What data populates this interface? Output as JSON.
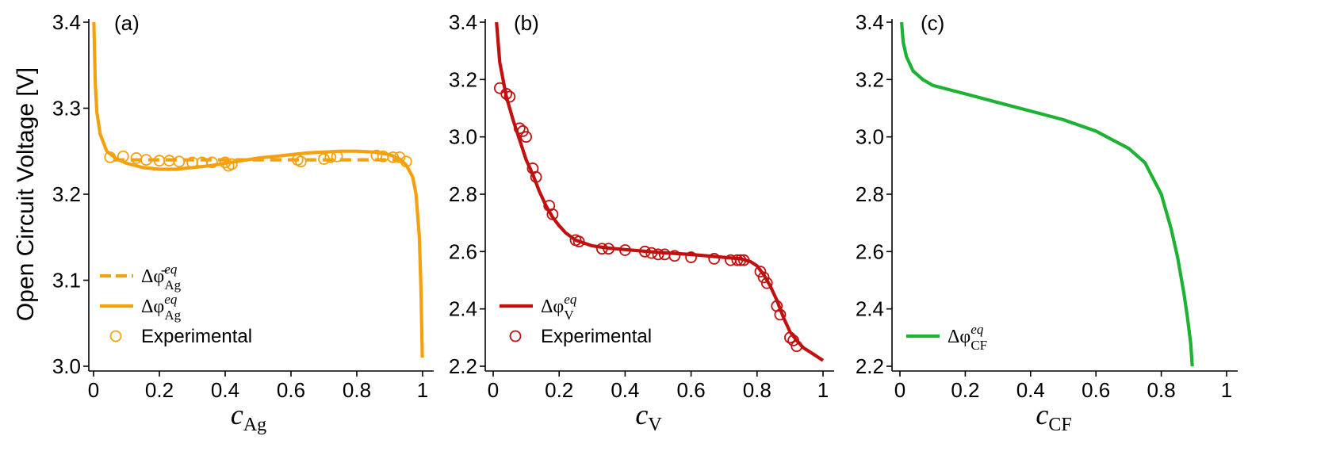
{
  "figure": {
    "ylabel": "Open Circuit Voltage [V]"
  },
  "chart_data": [
    {
      "type": "line",
      "panel_label": "(a)",
      "xlabel": {
        "var": "c",
        "sub": "Ag"
      },
      "xlim": [
        0,
        1
      ],
      "ylim": [
        3.0,
        3.4
      ],
      "x_ticks": [
        0,
        0.2,
        0.4,
        0.6,
        0.8,
        1
      ],
      "x_tick_labels": [
        "0",
        "0.2",
        "0.4",
        "0.6",
        "0.8",
        "1"
      ],
      "y_ticks": [
        3.0,
        3.1,
        3.2,
        3.3,
        3.4
      ],
      "y_tick_labels": [
        "3.0",
        "3.1",
        "3.2",
        "3.3",
        "3.4"
      ],
      "color": "#F5A10E",
      "series": [
        {
          "name": "Δφ̄ eq Ag",
          "legend_main": "Δφ̄",
          "legend_sup": "eq",
          "legend_sub": "Ag",
          "style": "dashed",
          "x": [
            0.06,
            0.1,
            0.2,
            0.3,
            0.4,
            0.5,
            0.6,
            0.7,
            0.8,
            0.9,
            0.94
          ],
          "y": [
            3.24,
            3.24,
            3.24,
            3.24,
            3.24,
            3.24,
            3.24,
            3.24,
            3.24,
            3.24,
            3.24
          ]
        },
        {
          "name": "Δφ eq Ag",
          "legend_main": "Δφ",
          "legend_sup": "eq",
          "legend_sub": "Ag",
          "style": "solid",
          "x": [
            0.001,
            0.005,
            0.01,
            0.02,
            0.04,
            0.07,
            0.1,
            0.15,
            0.2,
            0.25,
            0.3,
            0.35,
            0.4,
            0.45,
            0.5,
            0.55,
            0.6,
            0.65,
            0.7,
            0.75,
            0.8,
            0.85,
            0.9,
            0.93,
            0.95,
            0.97,
            0.98,
            0.99,
            0.995,
            0.999
          ],
          "y": [
            3.4,
            3.33,
            3.295,
            3.27,
            3.25,
            3.241,
            3.236,
            3.231,
            3.229,
            3.229,
            3.231,
            3.233,
            3.236,
            3.239,
            3.242,
            3.244,
            3.246,
            3.248,
            3.249,
            3.25,
            3.25,
            3.249,
            3.246,
            3.241,
            3.234,
            3.22,
            3.2,
            3.15,
            3.09,
            3.01
          ]
        },
        {
          "name": "Experimental",
          "legend_main": "Experimental",
          "style": "markers",
          "x": [
            0.05,
            0.09,
            0.13,
            0.16,
            0.2,
            0.23,
            0.26,
            0.3,
            0.33,
            0.36,
            0.4,
            0.41,
            0.42,
            0.62,
            0.63,
            0.7,
            0.72,
            0.74,
            0.86,
            0.88,
            0.91,
            0.93,
            0.95
          ],
          "y": [
            3.243,
            3.244,
            3.242,
            3.24,
            3.239,
            3.239,
            3.238,
            3.237,
            3.237,
            3.237,
            3.237,
            3.233,
            3.235,
            3.24,
            3.238,
            3.241,
            3.243,
            3.244,
            3.245,
            3.244,
            3.243,
            3.243,
            3.238
          ]
        }
      ],
      "legend_position": "lower-left"
    },
    {
      "type": "line",
      "panel_label": "(b)",
      "xlabel": {
        "var": "c",
        "sub": "V"
      },
      "xlim": [
        0,
        1
      ],
      "ylim": [
        2.2,
        3.4
      ],
      "x_ticks": [
        0,
        0.2,
        0.4,
        0.6,
        0.8,
        1
      ],
      "x_tick_labels": [
        "0",
        "0.2",
        "0.4",
        "0.6",
        "0.8",
        "1"
      ],
      "y_ticks": [
        2.2,
        2.4,
        2.6,
        2.8,
        3.0,
        3.2,
        3.4
      ],
      "y_tick_labels": [
        "2.2",
        "2.4",
        "2.6",
        "2.8",
        "3.0",
        "3.2",
        "3.4"
      ],
      "color": "#C0100F",
      "series": [
        {
          "name": "Δφ eq V",
          "legend_main": "Δφ",
          "legend_sup": "eq",
          "legend_sub": "V",
          "style": "solid",
          "x": [
            0.01,
            0.02,
            0.04,
            0.06,
            0.08,
            0.1,
            0.12,
            0.14,
            0.16,
            0.18,
            0.2,
            0.22,
            0.25,
            0.3,
            0.35,
            0.4,
            0.5,
            0.6,
            0.7,
            0.75,
            0.78,
            0.8,
            0.82,
            0.84,
            0.86,
            0.88,
            0.9,
            0.92,
            0.94,
            0.96,
            0.98,
            1.0
          ],
          "y": [
            3.4,
            3.26,
            3.14,
            3.06,
            2.99,
            2.92,
            2.87,
            2.81,
            2.76,
            2.72,
            2.69,
            2.665,
            2.64,
            2.62,
            2.612,
            2.607,
            2.597,
            2.59,
            2.58,
            2.575,
            2.565,
            2.55,
            2.52,
            2.48,
            2.43,
            2.37,
            2.32,
            2.29,
            2.265,
            2.25,
            2.235,
            2.22
          ]
        },
        {
          "name": "Experimental",
          "legend_main": "Experimental",
          "style": "markers",
          "x": [
            0.02,
            0.04,
            0.05,
            0.08,
            0.09,
            0.1,
            0.12,
            0.13,
            0.17,
            0.18,
            0.25,
            0.26,
            0.33,
            0.35,
            0.4,
            0.46,
            0.48,
            0.5,
            0.52,
            0.55,
            0.6,
            0.67,
            0.72,
            0.74,
            0.75,
            0.76,
            0.81,
            0.82,
            0.83,
            0.86,
            0.87,
            0.9,
            0.91,
            0.92
          ],
          "y": [
            3.17,
            3.15,
            3.14,
            3.03,
            3.02,
            3.0,
            2.89,
            2.86,
            2.76,
            2.73,
            2.64,
            2.635,
            2.61,
            2.61,
            2.605,
            2.6,
            2.595,
            2.59,
            2.59,
            2.585,
            2.58,
            2.575,
            2.57,
            2.57,
            2.57,
            2.57,
            2.53,
            2.51,
            2.49,
            2.41,
            2.38,
            2.3,
            2.29,
            2.27
          ]
        }
      ],
      "legend_position": "lower-left"
    },
    {
      "type": "line",
      "panel_label": "(c)",
      "xlabel": {
        "var": "c",
        "sub": "CF"
      },
      "xlim": [
        0,
        1
      ],
      "ylim": [
        2.2,
        3.4
      ],
      "x_ticks": [
        0,
        0.2,
        0.4,
        0.6,
        0.8,
        1
      ],
      "x_tick_labels": [
        "0",
        "0.2",
        "0.4",
        "0.6",
        "0.8",
        "1"
      ],
      "y_ticks": [
        2.2,
        2.4,
        2.6,
        2.8,
        3.0,
        3.2,
        3.4
      ],
      "y_tick_labels": [
        "2.2",
        "2.4",
        "2.6",
        "2.8",
        "3.0",
        "3.2",
        "3.4"
      ],
      "color": "#1DB233",
      "series": [
        {
          "name": "Δφ eq CF",
          "legend_main": "Δφ",
          "legend_sup": "eq",
          "legend_sub": "CF",
          "style": "solid",
          "x": [
            0.005,
            0.01,
            0.02,
            0.04,
            0.07,
            0.1,
            0.2,
            0.3,
            0.4,
            0.5,
            0.6,
            0.7,
            0.75,
            0.8,
            0.83,
            0.85,
            0.87,
            0.88,
            0.89,
            0.895
          ],
          "y": [
            3.4,
            3.33,
            3.28,
            3.23,
            3.2,
            3.18,
            3.15,
            3.12,
            3.09,
            3.06,
            3.02,
            2.96,
            2.91,
            2.8,
            2.68,
            2.58,
            2.45,
            2.37,
            2.28,
            2.2
          ]
        }
      ],
      "legend_position": "lower-left"
    }
  ]
}
